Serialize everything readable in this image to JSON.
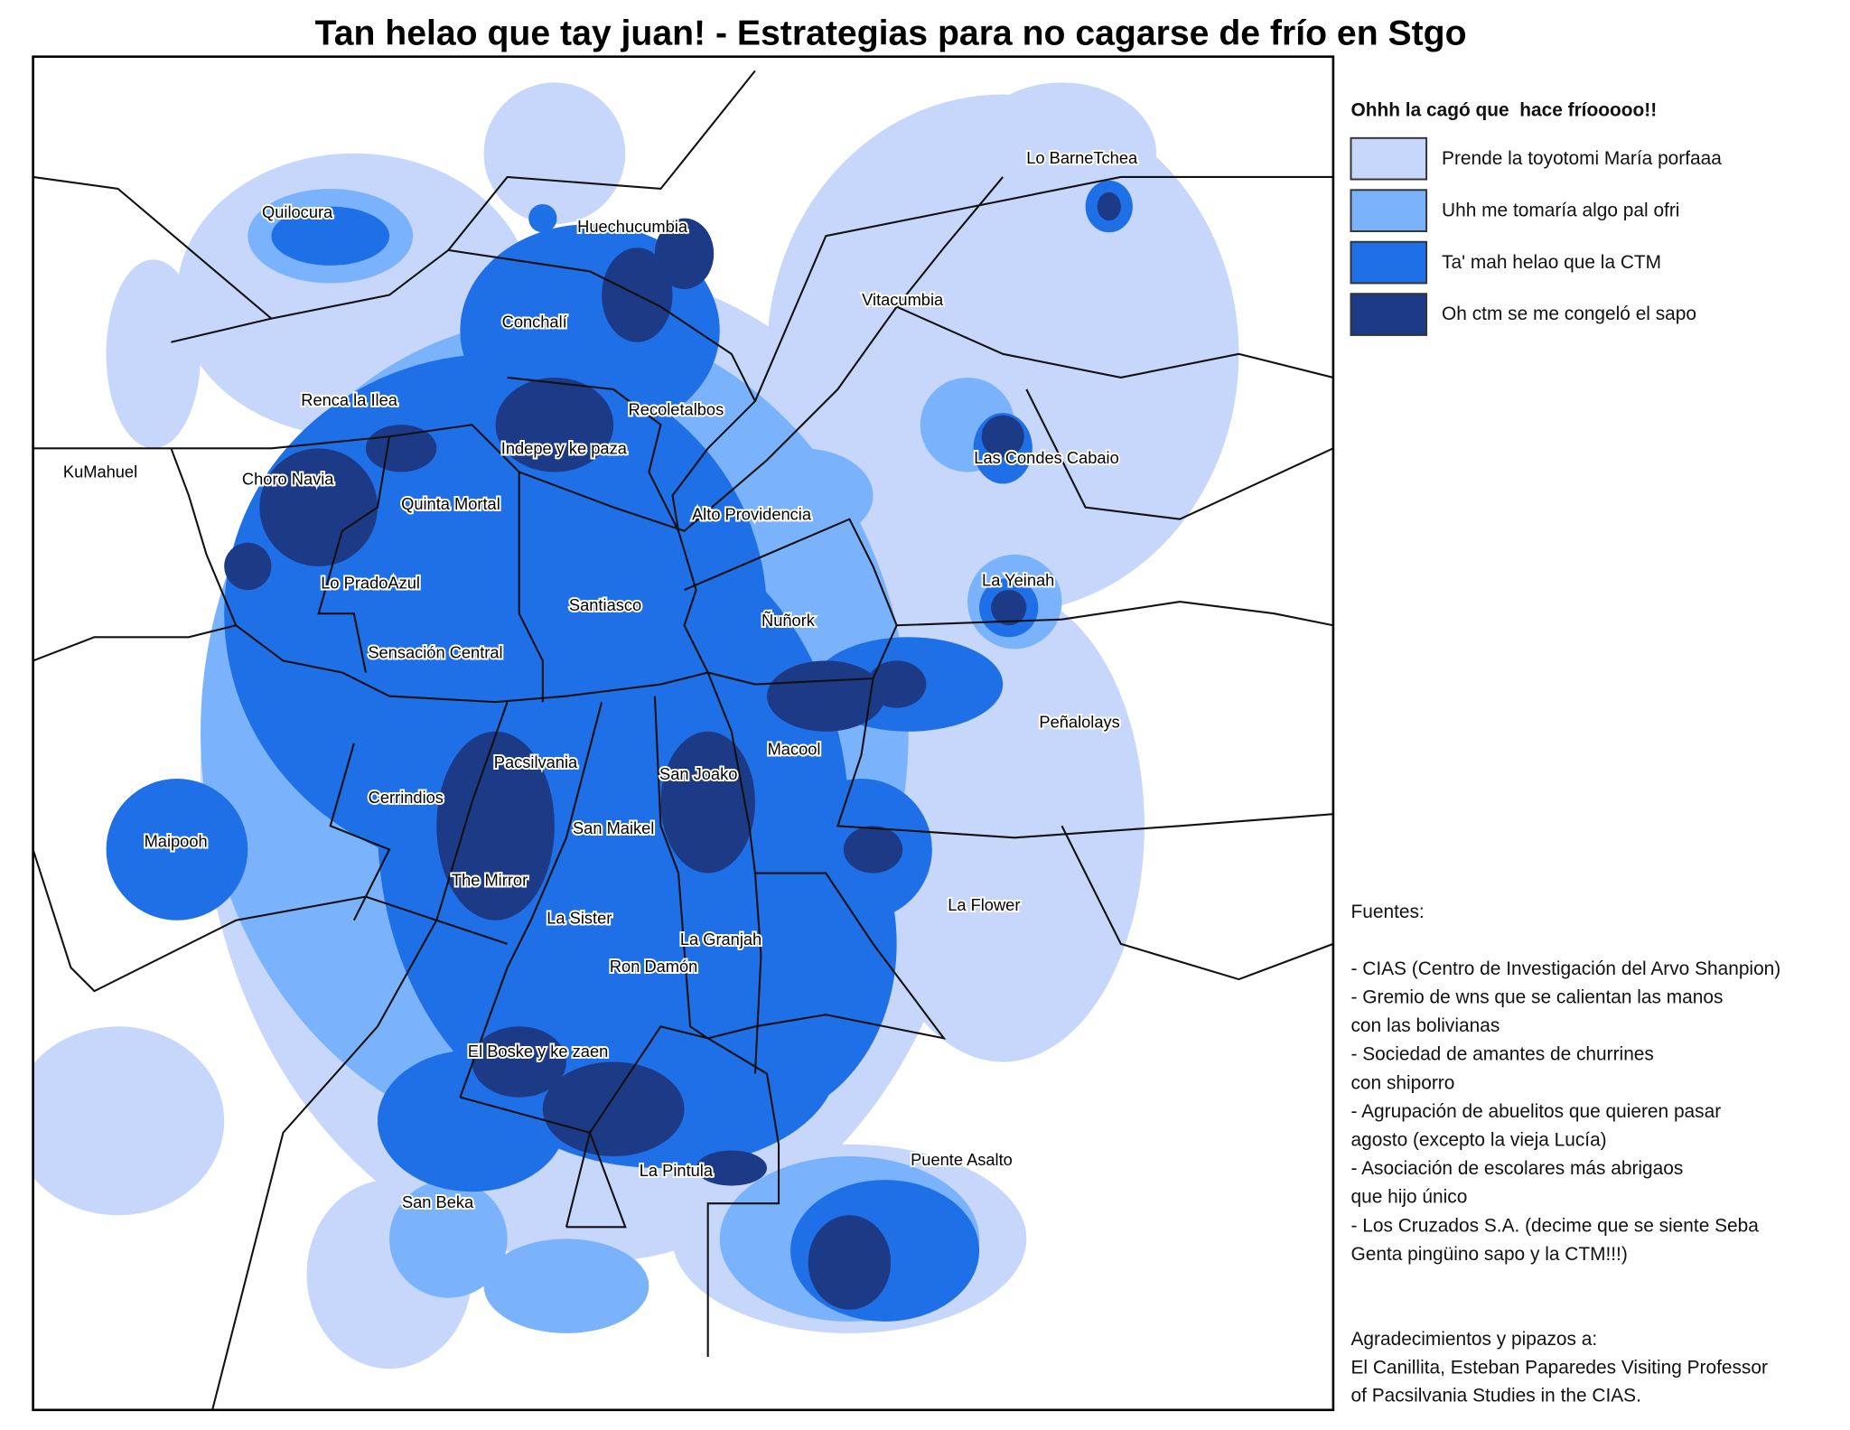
{
  "title": "Tan helao que tay juan! - Estrategias para no cagarse de frío en Stgo",
  "legend": {
    "title": "Ohhh la cagó que  hace fríooooo!!",
    "items": [
      {
        "label": "Prende la toyotomi María porfaaa",
        "color": "#c6d7fb"
      },
      {
        "label": "Uhh me tomaría algo pal ofri",
        "color": "#7ab3fb"
      },
      {
        "label": "Ta' mah helao que la CTM",
        "color": "#1f6fe6"
      },
      {
        "label": "Oh ctm se me congeló el sapo",
        "color": "#1c3a85"
      }
    ]
  },
  "places": [
    "Quilocura",
    "Huechucumbia",
    "Lo BarneTchea",
    "Vitacumbia",
    "Conchalí",
    "Renca la Ilea",
    "Recoletalbos",
    "Indepe y ke paza",
    "Las Condes Cabaio",
    "KuMahuel",
    "Choro Navia",
    "Quinta Mortal",
    "Alto Providencia",
    "La Yeinah",
    "Lo PradoAzul",
    "Santiasco",
    "Ñuñork",
    "Sensación Central",
    "Peñalolays",
    "Macool",
    "Pacsilvania",
    "San Joako",
    "Cerrindios",
    "San Maikel",
    "Maipooh",
    "The Mirror",
    "La Flower",
    "La Sister",
    "La Granjah",
    "Ron Damón",
    "El Boske y ke zaen",
    "Puente Asalto",
    "La Pintula",
    "San Beka"
  ],
  "sources": {
    "heading": "Fuentes:",
    "lines": [
      "- CIAS (Centro de Investigación del Arvo Shanpion)",
      "- Gremio de wns que se calientan las manos",
      "con las bolivianas",
      "- Sociedad de amantes de churrines",
      "con shiporro",
      "- Agrupación de abuelitos que quieren pasar",
      "agosto (excepto la vieja Lucía)",
      "- Asociación de escolares más abrigaos",
      "que hijo único",
      "- Los Cruzados S.A. (decime que se siente Seba",
      "Genta pingüino sapo y la CTM!!!)"
    ]
  },
  "credits": [
    "Agradecimientos y pipazos a:",
    "El Canillita, Esteban Paparedes Visiting Professor",
    "of Pacsilvania Studies in the CIAS."
  ]
}
